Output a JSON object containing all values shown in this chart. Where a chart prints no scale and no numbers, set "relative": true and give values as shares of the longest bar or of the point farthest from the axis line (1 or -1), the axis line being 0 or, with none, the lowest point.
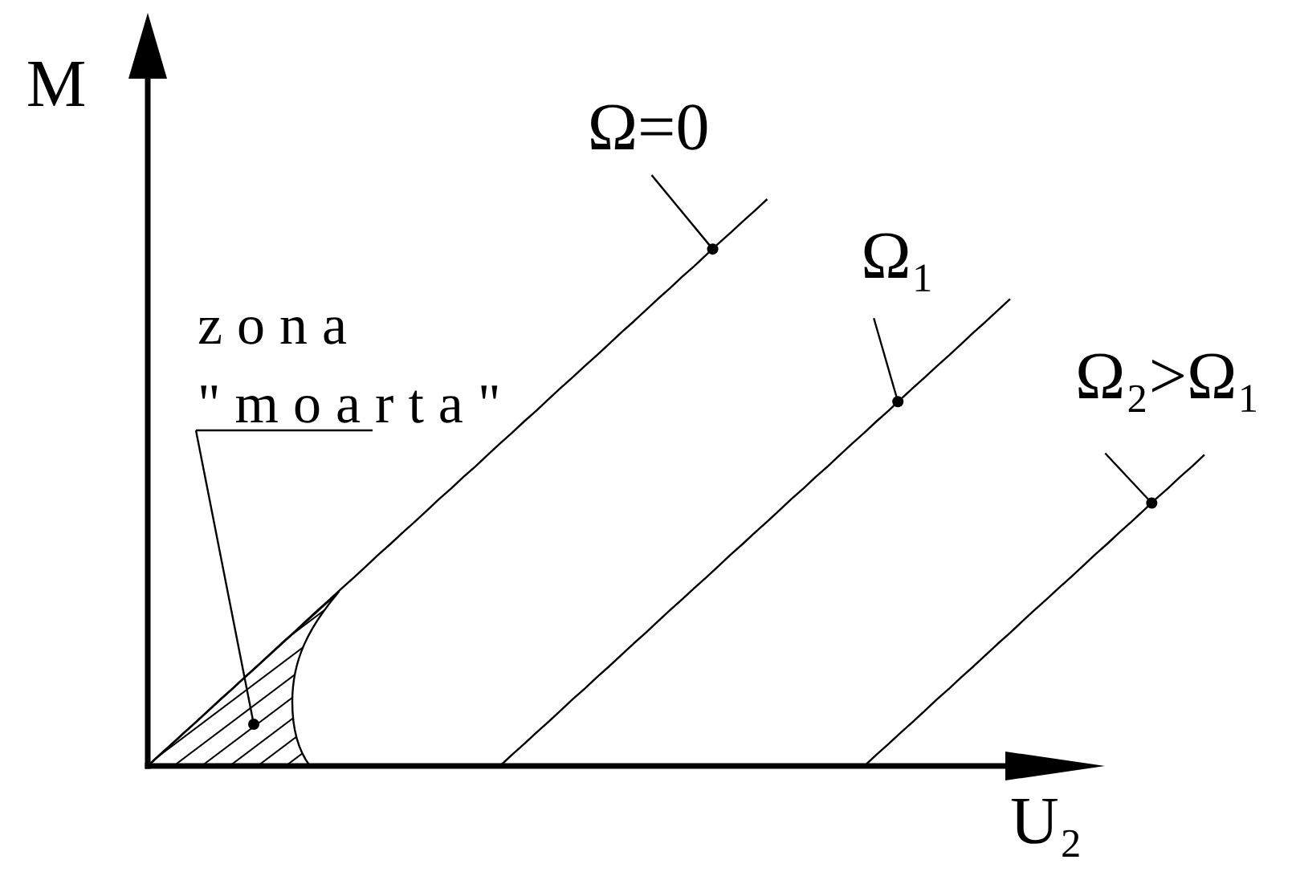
{
  "chart_data": {
    "type": "line",
    "xlabel": "U₂",
    "ylabel": "M",
    "relative": true,
    "annotations": [
      "zona \"moarta\""
    ],
    "categories": [
      null,
      null,
      null,
      null,
      null,
      null,
      null,
      null,
      null,
      null,
      null,
      null,
      null,
      null,
      null,
      null,
      null,
      null,
      null,
      null,
      null,
      null,
      null,
      null,
      null,
      null,
      null,
      null,
      null,
      null,
      null,
      null,
      null,
      null,
      null,
      null,
      null,
      null,
      null,
      null,
      null,
      null,
      null,
      null,
      null,
      null,
      null,
      null,
      null,
      null,
      null,
      null,
      null,
      null,
      null,
      null,
      null,
      null,
      null,
      null,
      null,
      null,
      null,
      null,
      null,
      null,
      null,
      null,
      null,
      null,
      null,
      null,
      null,
      null,
      null,
      null,
      null,
      null,
      null,
      null,
      null,
      null,
      null,
      null,
      null,
      null,
      null,
      null
    ],
    "series": [
      {
        "name": "Ω=0",
        "color": "#000000",
        "values": [
          0,
          0.02,
          0.039,
          0.059,
          0.078,
          0.098,
          0.118,
          0.137,
          0.157,
          0.176,
          0.196,
          0.216,
          0.235,
          0.255,
          0.275,
          0.294,
          0.314,
          0.333,
          0.353,
          0.373,
          0.392,
          0.412,
          0.431,
          0.451,
          0.471,
          0.49,
          0.51,
          0.529,
          0.549,
          0.569,
          0.588,
          0.608,
          0.627,
          0.647,
          0.667,
          0.686,
          0.706,
          0.725,
          0.745,
          0.765,
          0.784,
          0.804,
          0.824,
          0.843,
          0.863,
          0.882,
          0.902,
          0.922,
          0.941,
          0.961,
          0.98,
          1,
          null,
          null,
          null,
          null,
          null,
          null,
          null,
          null,
          null,
          null,
          null,
          null,
          null,
          null,
          null,
          null,
          null,
          null,
          null,
          null,
          null,
          null,
          null,
          null,
          null,
          null,
          null,
          null,
          null,
          null,
          null,
          null,
          null,
          null,
          null,
          null
        ]
      },
      {
        "name": "Ω₁",
        "color": "#000000",
        "values": [
          null,
          null,
          null,
          null,
          null,
          null,
          null,
          null,
          null,
          null,
          null,
          null,
          null,
          null,
          null,
          null,
          null,
          null,
          null,
          null,
          null,
          null,
          null,
          null,
          null,
          null,
          null,
          null,
          null,
          0,
          0.02,
          0.039,
          0.059,
          0.078,
          0.098,
          0.118,
          0.137,
          0.157,
          0.176,
          0.196,
          0.216,
          0.235,
          0.255,
          0.275,
          0.294,
          0.314,
          0.333,
          0.353,
          0.373,
          0.392,
          0.412,
          0.431,
          0.451,
          0.471,
          0.49,
          0.51,
          0.529,
          0.549,
          0.569,
          0.588,
          0.608,
          0.627,
          0.647,
          0.667,
          0.686,
          0.706,
          0.725,
          0.745,
          0.765,
          0.784,
          0.804,
          0.824,
          null,
          null,
          null,
          null,
          null,
          null,
          null,
          null,
          null,
          null,
          null,
          null,
          null,
          null,
          null,
          null
        ]
      },
      {
        "name": "Ω₂>Ω₁",
        "color": "#000000",
        "values": [
          null,
          null,
          null,
          null,
          null,
          null,
          null,
          null,
          null,
          null,
          null,
          null,
          null,
          null,
          null,
          null,
          null,
          null,
          null,
          null,
          null,
          null,
          null,
          null,
          null,
          null,
          null,
          null,
          null,
          null,
          null,
          null,
          null,
          null,
          null,
          null,
          null,
          null,
          null,
          null,
          null,
          null,
          null,
          null,
          null,
          null,
          null,
          null,
          null,
          null,
          null,
          null,
          null,
          null,
          null,
          null,
          null,
          null,
          null,
          0,
          0.02,
          0.039,
          0.059,
          0.078,
          0.098,
          0.118,
          0.137,
          0.157,
          0.176,
          0.196,
          0.216,
          0.235,
          0.255,
          0.275,
          0.294,
          0.314,
          0.333,
          0.353,
          0.373,
          0.392,
          0.412,
          0.431,
          0.451,
          0.471,
          0.49,
          0.51,
          0.529,
          0.549
        ]
      }
    ]
  }
}
